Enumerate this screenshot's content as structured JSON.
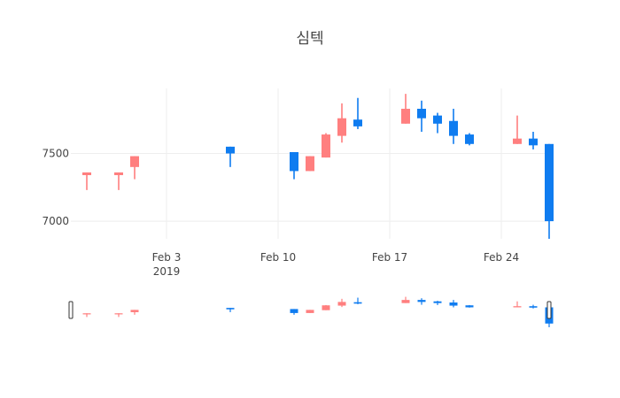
{
  "chart_data": {
    "type": "candlestick",
    "title": "심텍",
    "xlabel": "",
    "ylabel": "",
    "x_ticks": [
      {
        "label": "Feb 3",
        "sublabel": "2019",
        "date": "2019-02-03"
      },
      {
        "label": "Feb 10",
        "sublabel": "",
        "date": "2019-02-10"
      },
      {
        "label": "Feb 17",
        "sublabel": "",
        "date": "2019-02-17"
      },
      {
        "label": "Feb 24",
        "sublabel": "",
        "date": "2019-02-24"
      }
    ],
    "y_ticks": [
      {
        "label": "7000",
        "value": 7000
      },
      {
        "label": "7500",
        "value": 7500
      }
    ],
    "xlim": [
      "2019-01-28",
      "2019-02-27"
    ],
    "ylim": [
      6870,
      7980
    ],
    "grid": true,
    "increasing_color": "#ff7f7f",
    "decreasing_color": "#0f7cf0",
    "rangeslider": true,
    "candles": [
      {
        "date": "2019-01-29",
        "open": 7340,
        "high": 7360,
        "low": 7230,
        "close": 7360
      },
      {
        "date": "2019-01-31",
        "open": 7340,
        "high": 7360,
        "low": 7230,
        "close": 7360
      },
      {
        "date": "2019-02-01",
        "open": 7400,
        "high": 7480,
        "low": 7310,
        "close": 7480
      },
      {
        "date": "2019-02-07",
        "open": 7550,
        "high": 7550,
        "low": 7400,
        "close": 7500
      },
      {
        "date": "2019-02-11",
        "open": 7510,
        "high": 7510,
        "low": 7310,
        "close": 7370
      },
      {
        "date": "2019-02-12",
        "open": 7370,
        "high": 7480,
        "low": 7370,
        "close": 7480
      },
      {
        "date": "2019-02-13",
        "open": 7470,
        "high": 7650,
        "low": 7470,
        "close": 7640
      },
      {
        "date": "2019-02-14",
        "open": 7630,
        "high": 7870,
        "low": 7580,
        "close": 7760
      },
      {
        "date": "2019-02-15",
        "open": 7750,
        "high": 7910,
        "low": 7680,
        "close": 7700
      },
      {
        "date": "2019-02-18",
        "open": 7720,
        "high": 7940,
        "low": 7720,
        "close": 7830
      },
      {
        "date": "2019-02-19",
        "open": 7830,
        "high": 7890,
        "low": 7660,
        "close": 7760
      },
      {
        "date": "2019-02-20",
        "open": 7780,
        "high": 7800,
        "low": 7650,
        "close": 7720
      },
      {
        "date": "2019-02-21",
        "open": 7740,
        "high": 7830,
        "low": 7570,
        "close": 7630
      },
      {
        "date": "2019-02-22",
        "open": 7640,
        "high": 7650,
        "low": 7560,
        "close": 7570
      },
      {
        "date": "2019-02-25",
        "open": 7570,
        "high": 7780,
        "low": 7570,
        "close": 7610
      },
      {
        "date": "2019-02-26",
        "open": 7610,
        "high": 7660,
        "low": 7530,
        "close": 7560
      },
      {
        "date": "2019-02-27",
        "open": 7570,
        "high": 7570,
        "low": 6870,
        "close": 7000
      }
    ]
  }
}
